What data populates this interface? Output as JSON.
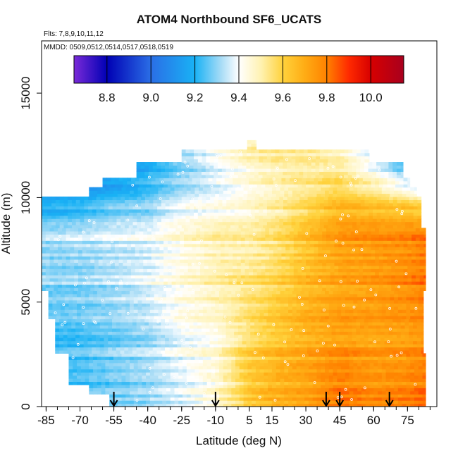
{
  "chart_data": {
    "type": "heatmap",
    "title": "ATOM4 Northbound SF6_UCATS",
    "flights_label": "Flts: 7,8,9,10,11,12",
    "mmdd_label": "MMDD: 0509,0512,0514,0517,0518,0519",
    "xlabel": "Latitude (deg N)",
    "ylabel": "Altitude (m)",
    "xlim": [
      -87,
      88
    ],
    "ylim": [
      0,
      17500
    ],
    "x_ticks": [
      -85,
      -70,
      -55,
      -40,
      -25,
      -10,
      5,
      15,
      30,
      45,
      60,
      75
    ],
    "x_tick_labels": [
      "-85",
      "-70",
      "-55",
      "-40",
      "-25",
      "-10",
      "5",
      "15",
      "30",
      "45",
      "60",
      "75"
    ],
    "y_ticks": [
      0,
      5000,
      10000,
      15000
    ],
    "y_tick_labels": [
      "0",
      "5000",
      "10000",
      "15000"
    ],
    "colorbar": {
      "range": [
        8.65,
        10.15
      ],
      "ticks": [
        8.8,
        9.0,
        9.2,
        9.4,
        9.6,
        9.8,
        10.0
      ],
      "tick_labels": [
        "8.8",
        "9.0",
        "9.2",
        "9.4",
        "9.6",
        "9.8",
        "10.0"
      ],
      "stops": [
        {
          "value": 8.65,
          "color": "#7a2ad8"
        },
        {
          "value": 8.8,
          "color": "#0000b4"
        },
        {
          "value": 9.0,
          "color": "#2a6ee6"
        },
        {
          "value": 9.2,
          "color": "#19b2f5"
        },
        {
          "value": 9.32,
          "color": "#a8dcf6"
        },
        {
          "value": 9.4,
          "color": "#ffffff"
        },
        {
          "value": 9.5,
          "color": "#fff2b2"
        },
        {
          "value": 9.6,
          "color": "#ffd23c"
        },
        {
          "value": 9.7,
          "color": "#ffac14"
        },
        {
          "value": 9.8,
          "color": "#ff8200"
        },
        {
          "value": 9.9,
          "color": "#ff2a00"
        },
        {
          "value": 10.0,
          "color": "#d70000"
        },
        {
          "value": 10.15,
          "color": "#a8001e"
        }
      ]
    },
    "field": {
      "lat_knots": [
        -85,
        -70,
        -55,
        -40,
        -25,
        -10,
        5,
        15,
        30,
        45,
        60,
        75,
        85
      ],
      "alt_knots": [
        0,
        2000,
        4000,
        6000,
        8000,
        9500,
        11000,
        12500
      ],
      "values": [
        [
          9.2,
          9.24,
          9.27,
          9.3,
          9.36,
          9.45,
          9.62,
          9.68,
          9.72,
          9.82,
          9.78,
          9.8,
          9.84
        ],
        [
          9.22,
          9.24,
          9.28,
          9.32,
          9.38,
          9.45,
          9.62,
          9.67,
          9.72,
          9.78,
          9.74,
          9.76,
          9.8
        ],
        [
          9.25,
          9.27,
          9.3,
          9.34,
          9.42,
          9.46,
          9.56,
          9.62,
          9.7,
          9.74,
          9.74,
          9.75,
          9.78
        ],
        [
          9.3,
          9.3,
          9.33,
          9.38,
          9.44,
          9.5,
          9.55,
          9.58,
          9.66,
          9.72,
          9.74,
          9.78,
          9.82
        ],
        [
          9.32,
          9.34,
          9.36,
          9.38,
          9.44,
          9.5,
          9.5,
          9.54,
          9.64,
          9.74,
          9.76,
          9.78,
          9.82
        ],
        [
          9.2,
          9.22,
          9.28,
          9.3,
          9.4,
          9.42,
          9.46,
          9.5,
          9.58,
          9.68,
          9.66,
          9.64,
          9.6
        ],
        [
          9.1,
          9.1,
          9.12,
          9.2,
          9.28,
          9.36,
          9.44,
          9.48,
          9.52,
          9.54,
          9.44,
          9.3,
          9.2
        ],
        [
          9.1,
          9.1,
          9.1,
          9.15,
          9.3,
          9.4,
          9.5,
          9.52,
          9.5,
          9.45,
          9.3,
          9.1,
          9.0
        ]
      ]
    },
    "flight_arrows_lat": [
      -55,
      -10,
      39,
      45,
      67
    ]
  }
}
